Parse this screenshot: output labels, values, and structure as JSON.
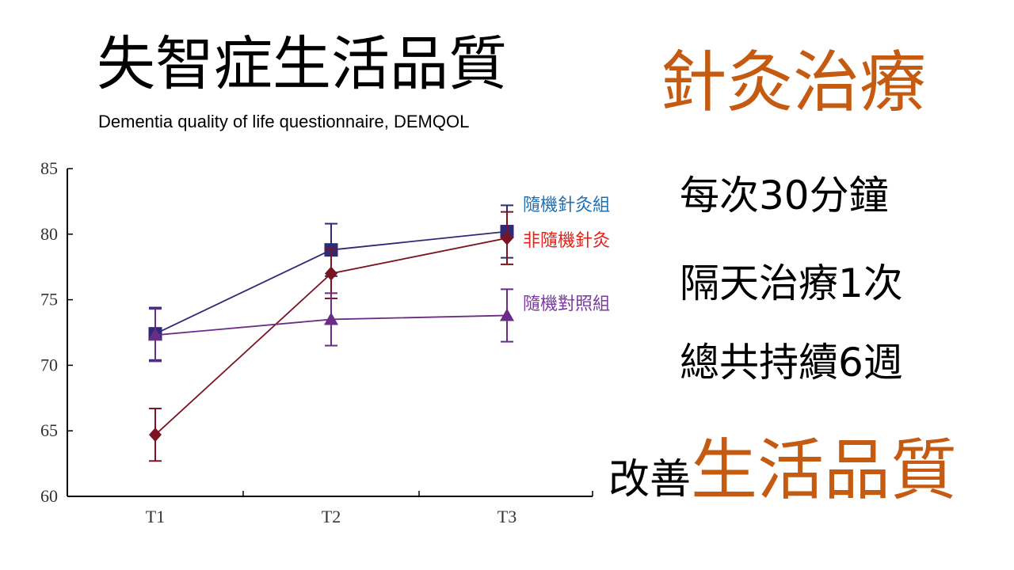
{
  "title": "失智症生活品質",
  "subtitle": "Dementia quality of life questionnaire, DEMQOL",
  "heading_right": "針灸治療",
  "info_lines": [
    "每次30分鐘",
    "隔天治療1次",
    "總共持續6週"
  ],
  "improve_prefix": "改善",
  "improve_emphasis": "生活品質",
  "colors": {
    "accent": "#c55a11",
    "series_random_acu": "#2e2a78",
    "series_nonrandom_acu": "#7a1420",
    "series_control": "#6a2c86",
    "label_random_acu": "#1f6fb4",
    "label_nonrandom_acu": "#e0221a",
    "label_control": "#7a3aa0"
  },
  "chart_data": {
    "type": "line",
    "categories": [
      "T1",
      "T2",
      "T3"
    ],
    "ylim": [
      60,
      85
    ],
    "yticks": [
      60,
      65,
      70,
      75,
      80,
      85
    ],
    "grid": false,
    "series": [
      {
        "name": "隨機針灸組",
        "marker": "square",
        "values": [
          72.4,
          78.8,
          80.2
        ],
        "error": [
          2.0,
          2.0,
          2.0
        ],
        "color_key": "series_random_acu",
        "label_color_key": "label_random_acu"
      },
      {
        "name": "非隨機針灸",
        "marker": "diamond",
        "values": [
          64.7,
          77.0,
          79.7
        ],
        "error": [
          2.0,
          1.9,
          2.0
        ],
        "color_key": "series_nonrandom_acu",
        "label_color_key": "label_nonrandom_acu"
      },
      {
        "name": "隨機對照組",
        "marker": "triangle",
        "values": [
          72.3,
          73.5,
          73.8
        ],
        "error": [
          2.0,
          2.0,
          2.0
        ],
        "color_key": "series_control",
        "label_color_key": "label_control"
      }
    ]
  }
}
